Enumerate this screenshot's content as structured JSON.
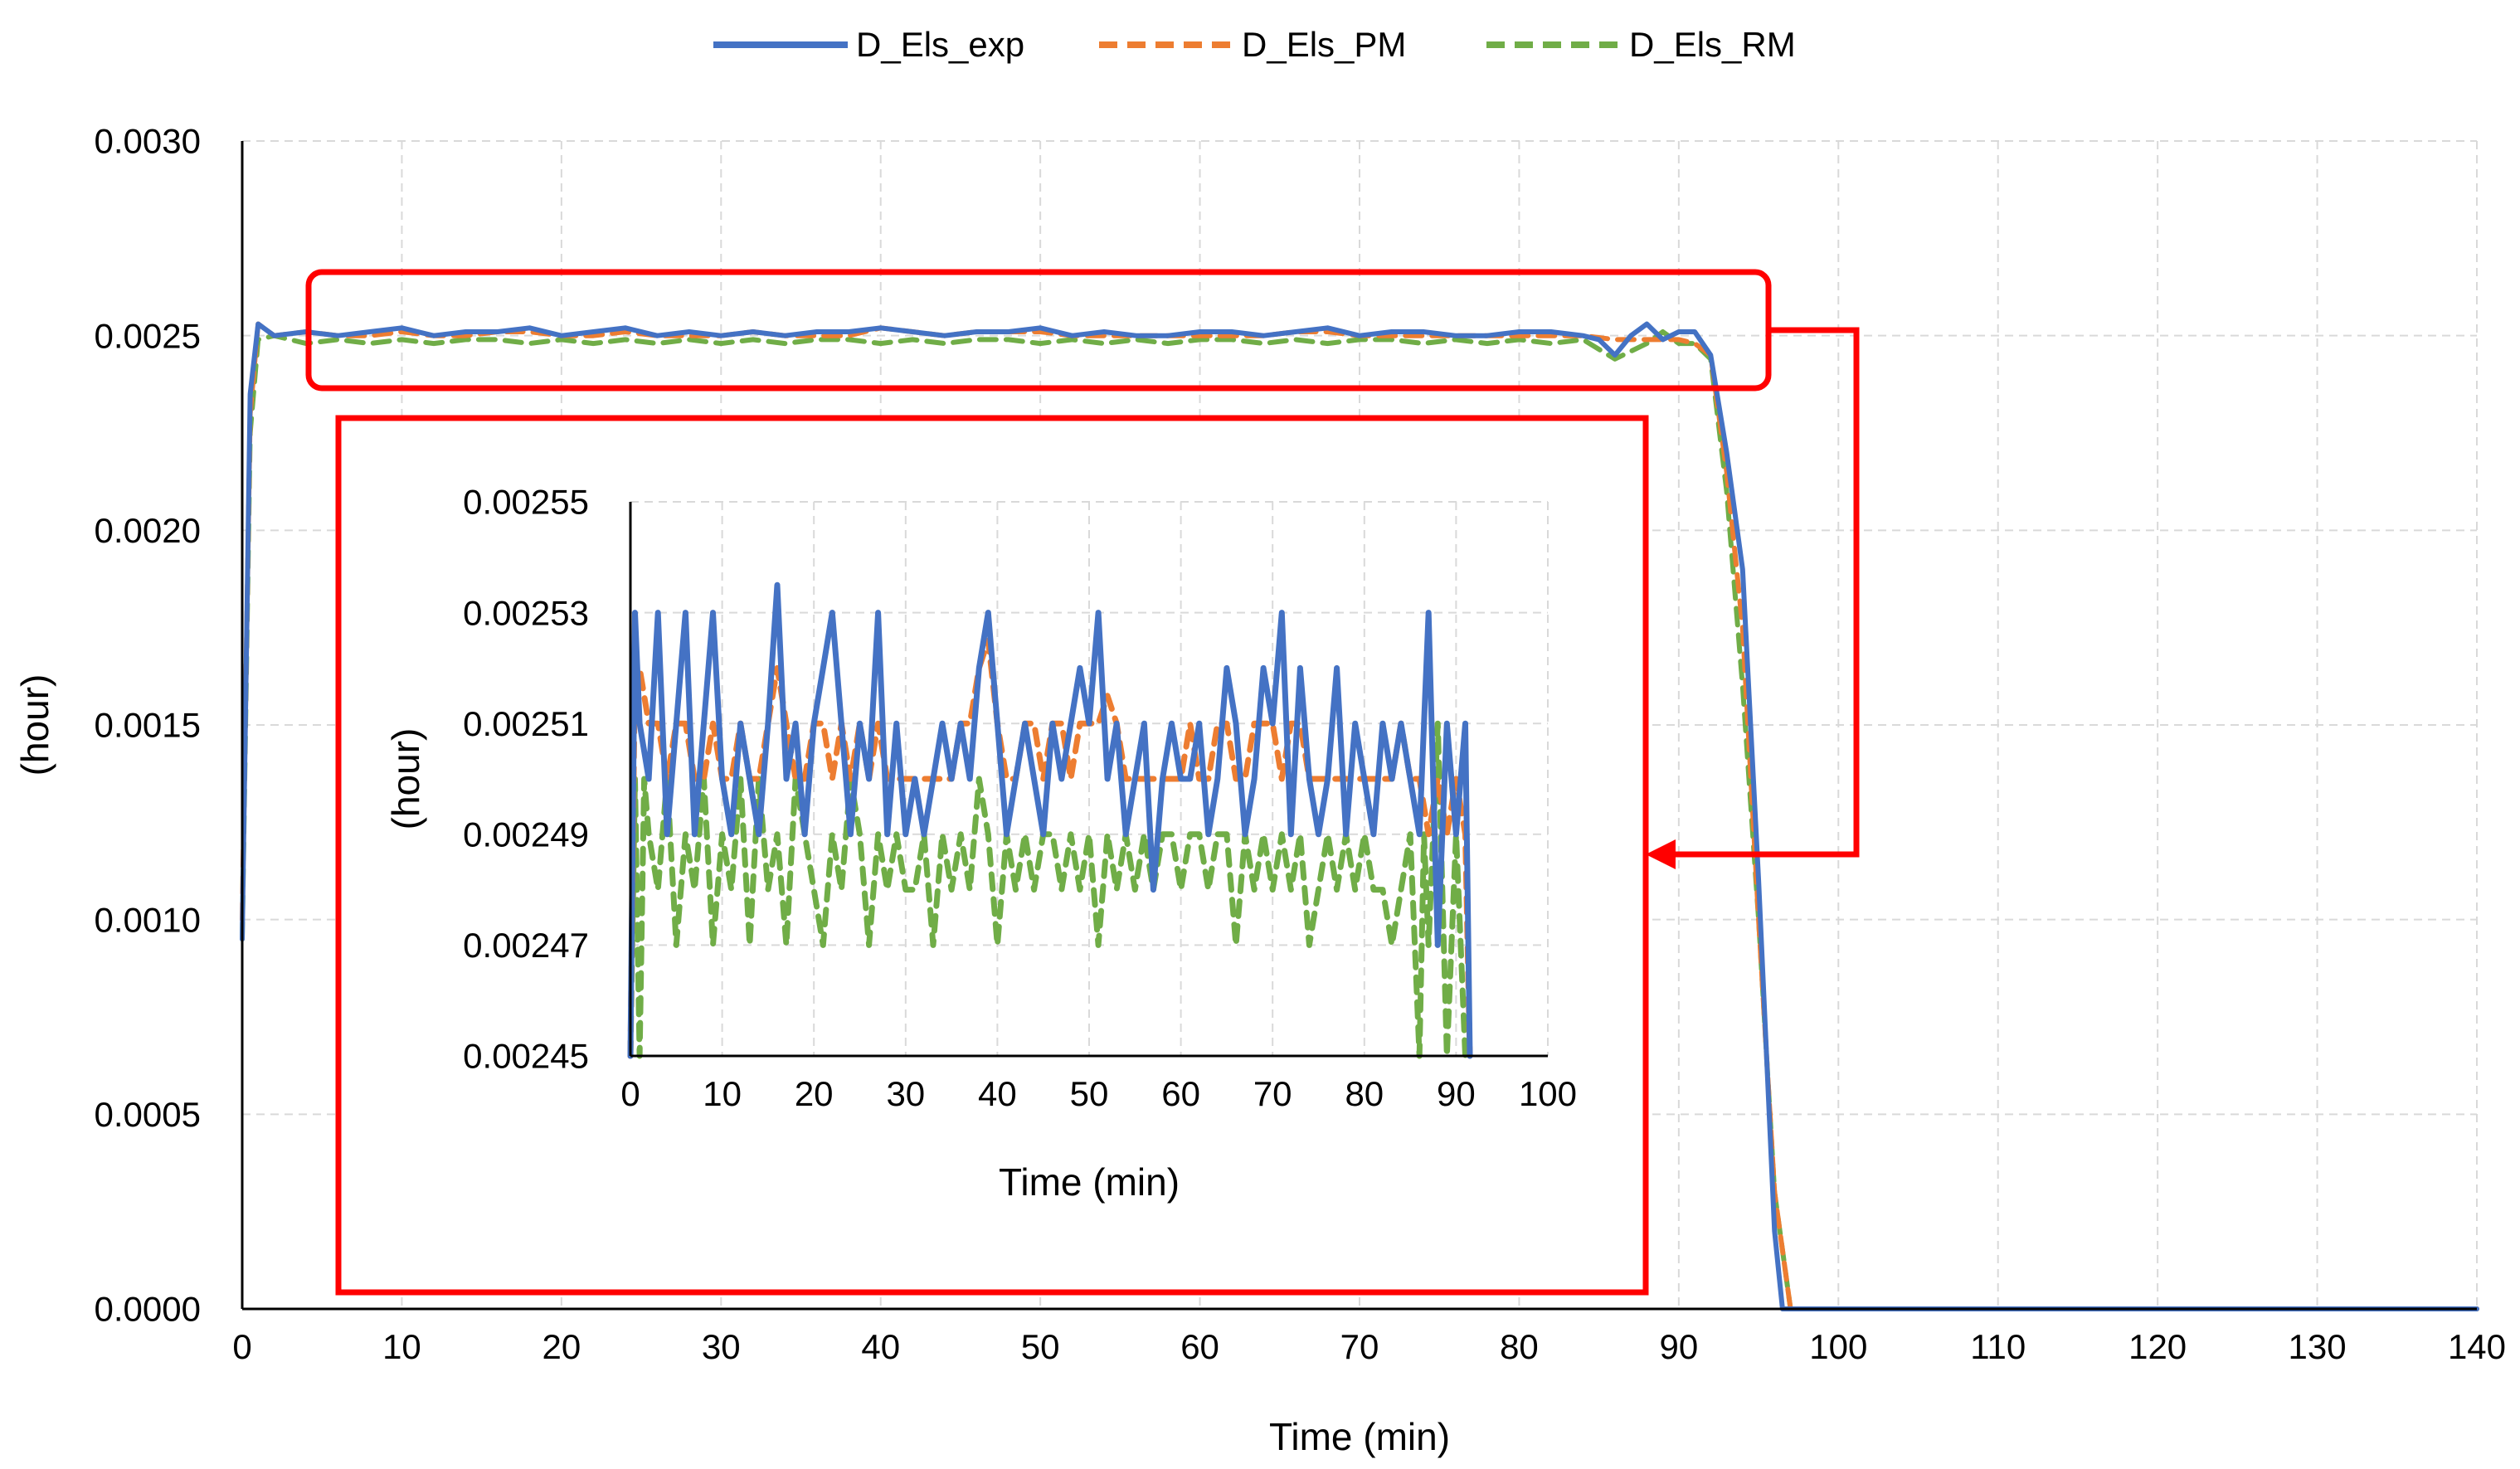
{
  "colors": {
    "exp": "#4472c4",
    "pm": "#ed7d31",
    "rm": "#70ad47",
    "highlight": "#ff0000",
    "grid": "#d9d9d9",
    "axis": "#000000"
  },
  "legend": {
    "placement": "top-center",
    "items": [
      {
        "key": "exp",
        "label": "D_Els_exp",
        "style": "solid"
      },
      {
        "key": "pm",
        "label": "D_Els_PM",
        "style": "dashed"
      },
      {
        "key": "rm",
        "label": "D_Els_RM",
        "style": "dashed"
      }
    ]
  },
  "chart_data": [
    {
      "id": "main",
      "type": "line",
      "xlabel": "Time (min)",
      "ylabel": "(hour)",
      "xlim": [
        0,
        140
      ],
      "ylim": [
        0,
        0.003
      ],
      "xticks": [
        "0",
        "10",
        "20",
        "30",
        "40",
        "50",
        "60",
        "70",
        "80",
        "90",
        "100",
        "110",
        "120",
        "130",
        "140"
      ],
      "yticks": [
        "0.0000",
        "0.0005",
        "0.0010",
        "0.0015",
        "0.0020",
        "0.0025",
        "0.0030"
      ],
      "grid": true,
      "series": [
        {
          "key": "exp",
          "name": "D_Els_exp",
          "x": [
            0,
            0.5,
            1,
            2,
            4,
            6,
            8,
            10,
            12,
            14,
            16,
            18,
            20,
            22,
            24,
            26,
            28,
            30,
            32,
            34,
            36,
            38,
            40,
            42,
            44,
            46,
            48,
            50,
            52,
            54,
            56,
            58,
            60,
            62,
            64,
            66,
            68,
            70,
            72,
            74,
            76,
            78,
            80,
            82,
            84,
            85,
            86,
            87,
            88,
            89,
            90,
            91,
            92,
            93,
            94,
            95,
            96,
            96.5,
            97,
            100,
            110,
            120,
            130,
            140
          ],
          "y": [
            0.00095,
            0.00235,
            0.00253,
            0.0025,
            0.00251,
            0.0025,
            0.00251,
            0.00252,
            0.0025,
            0.00251,
            0.00251,
            0.00252,
            0.0025,
            0.00251,
            0.00252,
            0.0025,
            0.00251,
            0.0025,
            0.00251,
            0.0025,
            0.00251,
            0.00251,
            0.00252,
            0.00251,
            0.0025,
            0.00251,
            0.00251,
            0.00252,
            0.0025,
            0.00251,
            0.0025,
            0.0025,
            0.00251,
            0.00251,
            0.0025,
            0.00251,
            0.00252,
            0.0025,
            0.00251,
            0.00251,
            0.0025,
            0.0025,
            0.00251,
            0.00251,
            0.0025,
            0.00249,
            0.00245,
            0.0025,
            0.00253,
            0.00249,
            0.00251,
            0.00251,
            0.00245,
            0.0022,
            0.0019,
            0.0011,
            0.0002,
            0,
            0,
            0,
            0,
            0,
            0,
            0
          ]
        },
        {
          "key": "pm",
          "name": "D_Els_PM",
          "x": [
            0,
            0.5,
            1,
            2,
            4,
            6,
            8,
            10,
            12,
            14,
            16,
            18,
            20,
            22,
            24,
            26,
            28,
            30,
            32,
            34,
            36,
            38,
            40,
            42,
            44,
            46,
            48,
            50,
            52,
            54,
            56,
            58,
            60,
            62,
            64,
            66,
            68,
            70,
            72,
            74,
            76,
            78,
            80,
            82,
            84,
            86,
            88,
            90,
            91,
            92,
            93,
            94,
            95,
            96,
            97,
            100,
            110,
            120,
            130,
            140
          ],
          "y": [
            0.001,
            0.0023,
            0.00253,
            0.0025,
            0.00251,
            0.0025,
            0.0025,
            0.00251,
            0.0025,
            0.0025,
            0.00251,
            0.00251,
            0.0025,
            0.0025,
            0.00251,
            0.0025,
            0.0025,
            0.0025,
            0.00251,
            0.0025,
            0.0025,
            0.0025,
            0.00252,
            0.00251,
            0.0025,
            0.00251,
            0.00251,
            0.00251,
            0.0025,
            0.0025,
            0.0025,
            0.0025,
            0.0025,
            0.0025,
            0.0025,
            0.00251,
            0.00251,
            0.0025,
            0.0025,
            0.0025,
            0.0025,
            0.0025,
            0.0025,
            0.0025,
            0.0025,
            0.00249,
            0.00249,
            0.00249,
            0.00248,
            0.00245,
            0.00215,
            0.00175,
            0.001,
            0.0003,
            0,
            0,
            0,
            0,
            0,
            0
          ]
        },
        {
          "key": "rm",
          "name": "D_Els_RM",
          "x": [
            0,
            0.5,
            1,
            2,
            4,
            6,
            8,
            10,
            12,
            14,
            16,
            18,
            20,
            22,
            24,
            26,
            28,
            30,
            32,
            34,
            36,
            38,
            40,
            42,
            44,
            46,
            48,
            50,
            52,
            54,
            56,
            58,
            60,
            62,
            64,
            66,
            68,
            70,
            72,
            74,
            76,
            78,
            80,
            82,
            84,
            86,
            88,
            89,
            90,
            91,
            92,
            93,
            94,
            95,
            96,
            97,
            100,
            110,
            120,
            130,
            140
          ],
          "y": [
            0.00095,
            0.00225,
            0.00249,
            0.0025,
            0.00248,
            0.00249,
            0.00248,
            0.00249,
            0.00248,
            0.00249,
            0.00249,
            0.00248,
            0.00249,
            0.00248,
            0.00249,
            0.00248,
            0.00249,
            0.00248,
            0.00249,
            0.00248,
            0.00249,
            0.00249,
            0.00248,
            0.00249,
            0.00248,
            0.00249,
            0.00249,
            0.00248,
            0.00249,
            0.00248,
            0.00249,
            0.00248,
            0.00249,
            0.00249,
            0.00248,
            0.00249,
            0.00248,
            0.00249,
            0.00249,
            0.00248,
            0.00249,
            0.00248,
            0.00249,
            0.00248,
            0.00249,
            0.00244,
            0.00248,
            0.00251,
            0.00248,
            0.00248,
            0.00244,
            0.0021,
            0.0016,
            0.001,
            0.0003,
            0,
            0,
            0,
            0,
            0,
            0
          ]
        }
      ]
    },
    {
      "id": "inset",
      "type": "line",
      "xlabel": "Time (min)",
      "ylabel": "(hour)",
      "xlim": [
        0,
        100
      ],
      "ylim": [
        0.00245,
        0.00255
      ],
      "xticks": [
        "0",
        "10",
        "20",
        "30",
        "40",
        "50",
        "60",
        "70",
        "80",
        "90",
        "100"
      ],
      "yticks": [
        "0.00245",
        "0.00247",
        "0.00249",
        "0.00251",
        "0.00253",
        "0.00255"
      ],
      "grid": true,
      "series": [
        {
          "key": "exp",
          "name": "D_Els_exp",
          "x": [
            0,
            0.5,
            1,
            2,
            3,
            4,
            5,
            6,
            7,
            8,
            9,
            10,
            11,
            12,
            13,
            14,
            15,
            16,
            17,
            18,
            19,
            20,
            21,
            22,
            23,
            24,
            25,
            26,
            27,
            28,
            29,
            30,
            31,
            32,
            33,
            34,
            35,
            36,
            37,
            38,
            39,
            40,
            41,
            42,
            43,
            44,
            45,
            46,
            47,
            48,
            49,
            50,
            51,
            52,
            53,
            54,
            55,
            56,
            57,
            58,
            59,
            60,
            61,
            62,
            63,
            64,
            65,
            66,
            67,
            68,
            69,
            70,
            71,
            72,
            73,
            74,
            75,
            76,
            77,
            78,
            79,
            80,
            81,
            82,
            83,
            84,
            85,
            86,
            87,
            88,
            89,
            90,
            91,
            91.5
          ],
          "y": [
            0.00245,
            0.00253,
            0.00251,
            0.0025,
            0.00253,
            0.00249,
            0.00251,
            0.00253,
            0.00249,
            0.00251,
            0.00253,
            0.0025,
            0.00249,
            0.00251,
            0.0025,
            0.00249,
            0.00251,
            0.002535,
            0.0025,
            0.00251,
            0.00249,
            0.00251,
            0.00252,
            0.00253,
            0.00251,
            0.00249,
            0.00251,
            0.0025,
            0.00253,
            0.00249,
            0.00251,
            0.00249,
            0.0025,
            0.00249,
            0.0025,
            0.00251,
            0.0025,
            0.00251,
            0.0025,
            0.00252,
            0.00253,
            0.00251,
            0.00249,
            0.0025,
            0.00251,
            0.0025,
            0.00249,
            0.00251,
            0.0025,
            0.00251,
            0.00252,
            0.00251,
            0.00253,
            0.0025,
            0.00251,
            0.00249,
            0.0025,
            0.00251,
            0.00248,
            0.0025,
            0.00251,
            0.0025,
            0.0025,
            0.00251,
            0.00249,
            0.0025,
            0.00252,
            0.00251,
            0.00249,
            0.0025,
            0.00252,
            0.00251,
            0.00253,
            0.00249,
            0.00252,
            0.0025,
            0.00249,
            0.0025,
            0.00252,
            0.00249,
            0.00251,
            0.0025,
            0.00249,
            0.00251,
            0.0025,
            0.00251,
            0.0025,
            0.00249,
            0.00253,
            0.00247,
            0.00251,
            0.00249,
            0.00251,
            0.00245
          ]
        },
        {
          "key": "pm",
          "name": "D_Els_PM",
          "x": [
            0,
            0.5,
            1,
            2,
            3,
            4,
            5,
            6,
            7,
            8,
            9,
            10,
            11,
            12,
            13,
            14,
            15,
            16,
            17,
            18,
            19,
            20,
            21,
            22,
            23,
            24,
            25,
            26,
            27,
            28,
            29,
            30,
            31,
            32,
            33,
            34,
            35,
            36,
            37,
            38,
            39,
            40,
            41,
            42,
            43,
            44,
            45,
            46,
            47,
            48,
            49,
            50,
            51,
            52,
            53,
            54,
            55,
            56,
            57,
            58,
            59,
            60,
            61,
            62,
            63,
            64,
            65,
            66,
            67,
            68,
            69,
            70,
            71,
            72,
            73,
            74,
            75,
            76,
            77,
            78,
            79,
            80,
            81,
            82,
            83,
            84,
            85,
            86,
            87,
            88,
            89,
            90,
            91,
            91.5
          ],
          "y": [
            0.00245,
            0.00252,
            0.00252,
            0.00251,
            0.00251,
            0.0025,
            0.00251,
            0.00251,
            0.0025,
            0.0025,
            0.00251,
            0.0025,
            0.0025,
            0.00251,
            0.0025,
            0.0025,
            0.00251,
            0.00252,
            0.00251,
            0.0025,
            0.0025,
            0.00251,
            0.00251,
            0.0025,
            0.00251,
            0.0025,
            0.00251,
            0.0025,
            0.00251,
            0.0025,
            0.0025,
            0.0025,
            0.0025,
            0.0025,
            0.0025,
            0.0025,
            0.0025,
            0.00251,
            0.00251,
            0.00252,
            0.002525,
            0.00251,
            0.0025,
            0.0025,
            0.00251,
            0.00251,
            0.0025,
            0.00251,
            0.00251,
            0.0025,
            0.00251,
            0.00251,
            0.00251,
            0.002515,
            0.00251,
            0.0025,
            0.0025,
            0.0025,
            0.0025,
            0.0025,
            0.0025,
            0.0025,
            0.00251,
            0.0025,
            0.0025,
            0.00251,
            0.00251,
            0.0025,
            0.0025,
            0.00251,
            0.00251,
            0.00251,
            0.0025,
            0.00251,
            0.00251,
            0.0025,
            0.0025,
            0.0025,
            0.0025,
            0.0025,
            0.0025,
            0.0025,
            0.0025,
            0.0025,
            0.0025,
            0.00251,
            0.0025,
            0.0025,
            0.00249,
            0.0025,
            0.00249,
            0.0025,
            0.00249,
            0.00245
          ]
        },
        {
          "key": "rm",
          "name": "D_Els_RM",
          "x": [
            0,
            0.5,
            1,
            1.5,
            2,
            3,
            4,
            5,
            6,
            7,
            8,
            9,
            10,
            11,
            12,
            13,
            14,
            15,
            16,
            17,
            18,
            19,
            20,
            21,
            22,
            23,
            24,
            25,
            26,
            27,
            28,
            29,
            30,
            31,
            32,
            33,
            34,
            35,
            36,
            37,
            38,
            39,
            40,
            41,
            42,
            43,
            44,
            45,
            46,
            47,
            48,
            49,
            50,
            51,
            52,
            53,
            54,
            55,
            56,
            57,
            58,
            59,
            60,
            61,
            62,
            63,
            64,
            65,
            66,
            67,
            68,
            69,
            70,
            71,
            72,
            73,
            74,
            75,
            76,
            77,
            78,
            79,
            80,
            81,
            82,
            83,
            84,
            85,
            86,
            86.5,
            87,
            88,
            89,
            90,
            91,
            91.5
          ],
          "y": [
            0.00245,
            0.0025,
            0.00245,
            0.0025,
            0.00249,
            0.00248,
            0.0025,
            0.00247,
            0.00249,
            0.00248,
            0.0025,
            0.00247,
            0.00249,
            0.00248,
            0.0025,
            0.00247,
            0.0025,
            0.00248,
            0.00249,
            0.00247,
            0.0025,
            0.00249,
            0.00248,
            0.00247,
            0.00249,
            0.00248,
            0.0025,
            0.00249,
            0.00247,
            0.00249,
            0.00248,
            0.00249,
            0.00248,
            0.00248,
            0.00249,
            0.00247,
            0.00249,
            0.00248,
            0.00249,
            0.00248,
            0.0025,
            0.00249,
            0.00247,
            0.00249,
            0.00248,
            0.00249,
            0.00248,
            0.00249,
            0.00249,
            0.00248,
            0.00249,
            0.00248,
            0.00249,
            0.00247,
            0.00249,
            0.00248,
            0.00249,
            0.00248,
            0.00249,
            0.00248,
            0.00249,
            0.00249,
            0.00248,
            0.00249,
            0.00249,
            0.00248,
            0.00249,
            0.00249,
            0.00247,
            0.00249,
            0.00248,
            0.00249,
            0.00248,
            0.00249,
            0.00248,
            0.00249,
            0.00247,
            0.00248,
            0.00249,
            0.00248,
            0.00249,
            0.00248,
            0.00249,
            0.00248,
            0.00248,
            0.00247,
            0.00248,
            0.00249,
            0.00245,
            0.00249,
            0.00247,
            0.00251,
            0.00245,
            0.00249,
            0.00245,
            0.00245
          ]
        }
      ]
    }
  ]
}
